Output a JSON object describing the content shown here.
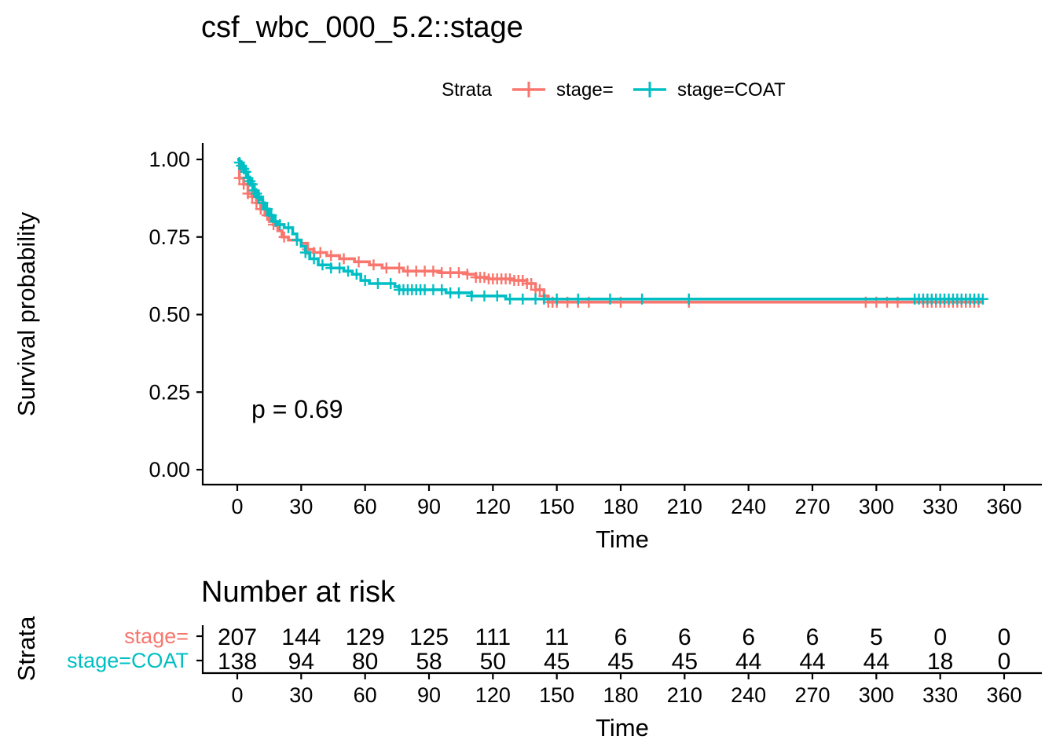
{
  "title": "csf_wbc_000_5.2::stage",
  "legend": {
    "title": "Strata",
    "entries": [
      {
        "label": "stage=",
        "color": "#F8766D"
      },
      {
        "label": "stage=COAT",
        "color": "#00BFC4"
      }
    ]
  },
  "chart_data": {
    "type": "line",
    "subtype": "kaplan-meier",
    "title": "csf_wbc_000_5.2::stage",
    "xlabel": "Time",
    "ylabel": "Survival probability",
    "xlim": [
      0,
      360
    ],
    "ylim": [
      0,
      1
    ],
    "x_ticks": [
      0,
      30,
      60,
      90,
      120,
      150,
      180,
      210,
      240,
      270,
      300,
      330,
      360
    ],
    "y_ticks": [
      "0.00",
      "0.25",
      "0.50",
      "0.75",
      "1.00"
    ],
    "grid": false,
    "legend_position": "top",
    "p_value_label": "p = 0.69",
    "series": [
      {
        "name": "stage=",
        "color": "#F8766D",
        "steps": [
          [
            0,
            1.0
          ],
          [
            1,
            0.94
          ],
          [
            3,
            0.92
          ],
          [
            5,
            0.89
          ],
          [
            7,
            0.88
          ],
          [
            9,
            0.86
          ],
          [
            11,
            0.84
          ],
          [
            13,
            0.82
          ],
          [
            15,
            0.8
          ],
          [
            17,
            0.79
          ],
          [
            19,
            0.77
          ],
          [
            21,
            0.75
          ],
          [
            24,
            0.74
          ],
          [
            30,
            0.73
          ],
          [
            33,
            0.71
          ],
          [
            36,
            0.7
          ],
          [
            42,
            0.69
          ],
          [
            48,
            0.68
          ],
          [
            55,
            0.67
          ],
          [
            62,
            0.66
          ],
          [
            68,
            0.65
          ],
          [
            78,
            0.64
          ],
          [
            95,
            0.635
          ],
          [
            108,
            0.63
          ],
          [
            112,
            0.62
          ],
          [
            118,
            0.615
          ],
          [
            130,
            0.61
          ],
          [
            136,
            0.6
          ],
          [
            140,
            0.58
          ],
          [
            144,
            0.56
          ],
          [
            146,
            0.54
          ],
          [
            212,
            0.54
          ],
          [
            350,
            0.54
          ]
        ],
        "censor_times": [
          1,
          3,
          5,
          7,
          9,
          11,
          14,
          17,
          22,
          28,
          33,
          36,
          39,
          44,
          50,
          57,
          64,
          70,
          76,
          80,
          84,
          88,
          92,
          96,
          100,
          104,
          108,
          112,
          114,
          116,
          118,
          120,
          122,
          124,
          126,
          128,
          130,
          132,
          134,
          136,
          138,
          140,
          142,
          144,
          146,
          148,
          150,
          155,
          160,
          165,
          180,
          212,
          295,
          300,
          305,
          310,
          322,
          324,
          326,
          328,
          330,
          332,
          334,
          336,
          338,
          340,
          342,
          344,
          346,
          348
        ]
      },
      {
        "name": "stage=COAT",
        "color": "#00BFC4",
        "steps": [
          [
            0,
            1.0
          ],
          [
            1,
            0.99
          ],
          [
            2,
            0.98
          ],
          [
            3,
            0.97
          ],
          [
            4,
            0.96
          ],
          [
            5,
            0.94
          ],
          [
            6,
            0.93
          ],
          [
            7,
            0.92
          ],
          [
            8,
            0.9
          ],
          [
            9,
            0.89
          ],
          [
            10,
            0.88
          ],
          [
            11,
            0.87
          ],
          [
            12,
            0.86
          ],
          [
            13,
            0.84
          ],
          [
            15,
            0.82
          ],
          [
            17,
            0.8
          ],
          [
            19,
            0.79
          ],
          [
            22,
            0.78
          ],
          [
            26,
            0.76
          ],
          [
            28,
            0.74
          ],
          [
            30,
            0.72
          ],
          [
            32,
            0.7
          ],
          [
            34,
            0.68
          ],
          [
            38,
            0.66
          ],
          [
            44,
            0.65
          ],
          [
            50,
            0.64
          ],
          [
            54,
            0.63
          ],
          [
            58,
            0.61
          ],
          [
            62,
            0.6
          ],
          [
            74,
            0.59
          ],
          [
            76,
            0.58
          ],
          [
            98,
            0.57
          ],
          [
            110,
            0.56
          ],
          [
            126,
            0.55
          ],
          [
            144,
            0.55
          ],
          [
            212,
            0.55
          ],
          [
            350,
            0.55
          ]
        ],
        "censor_times": [
          1,
          2,
          3,
          4,
          5,
          6,
          7,
          8,
          9,
          10,
          12,
          14,
          16,
          18,
          20,
          24,
          28,
          32,
          36,
          40,
          44,
          48,
          52,
          56,
          60,
          66,
          72,
          76,
          78,
          80,
          82,
          84,
          86,
          88,
          92,
          96,
          100,
          104,
          110,
          116,
          122,
          128,
          134,
          140,
          144,
          150,
          160,
          175,
          190,
          212,
          318,
          320,
          322,
          324,
          326,
          328,
          330,
          332,
          334,
          336,
          338,
          340,
          342,
          344,
          346,
          348,
          350
        ]
      }
    ]
  },
  "risk_table": {
    "title": "Number at risk",
    "ylabel": "Strata",
    "xlabel": "Time",
    "times": [
      0,
      30,
      60,
      90,
      120,
      150,
      180,
      210,
      240,
      270,
      300,
      330,
      360
    ],
    "rows": [
      {
        "label": "stage=",
        "color": "#F8766D",
        "values": [
          "207",
          "144",
          "129",
          "125",
          "111",
          "11",
          "6",
          "6",
          "6",
          "6",
          "5",
          "0",
          "0"
        ]
      },
      {
        "label": "stage=COAT",
        "color": "#00BFC4",
        "values": [
          "138",
          "94",
          "80",
          "58",
          "50",
          "45",
          "45",
          "45",
          "44",
          "44",
          "44",
          "18",
          "0"
        ]
      }
    ]
  }
}
